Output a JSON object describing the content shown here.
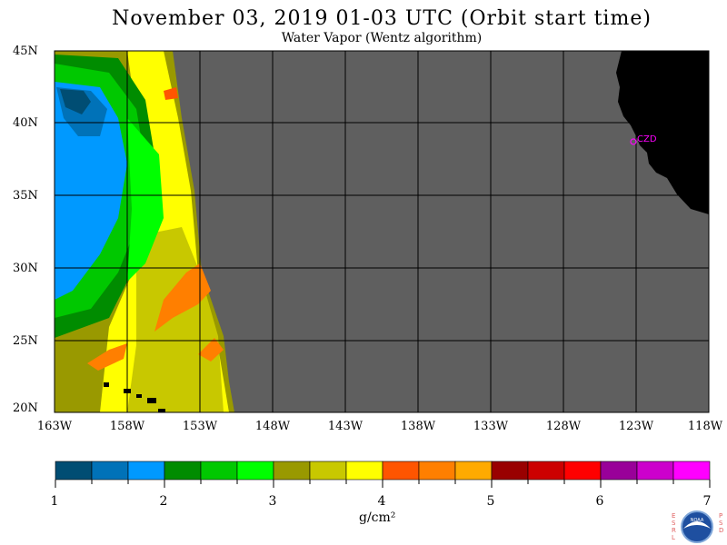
{
  "header": {
    "title": "November 03, 2019  01-03 UTC  (Orbit start time)",
    "subtitle": "Water Vapor (Wentz algorithm)"
  },
  "map": {
    "lat_labels": [
      "45N",
      "40N",
      "35N",
      "30N",
      "25N",
      "20N"
    ],
    "lon_labels": [
      "163W",
      "158W",
      "153W",
      "148W",
      "143W",
      "138W",
      "133W",
      "128W",
      "123W",
      "118W"
    ],
    "station_label": "CZD",
    "colors": {
      "no_data": "#5f5f5f",
      "land": "#000000",
      "grid": "#000000",
      "station": "#ff00ff"
    }
  },
  "colorbar": {
    "colors": [
      "#004d73",
      "#0072b8",
      "#0099ff",
      "#008c00",
      "#00c800",
      "#00ff00",
      "#999900",
      "#c8c800",
      "#ffff00",
      "#ff5500",
      "#ff7f00",
      "#ffaa00",
      "#990000",
      "#cc0000",
      "#ff0000",
      "#990099",
      "#cc00cc",
      "#ff00ff"
    ],
    "labels": [
      "1",
      "2",
      "3",
      "4",
      "5",
      "6",
      "7"
    ],
    "units": "g/cm²"
  },
  "logo": {
    "left_letters": "ESRL",
    "right_letters": "PSD",
    "center": "NOAA"
  }
}
